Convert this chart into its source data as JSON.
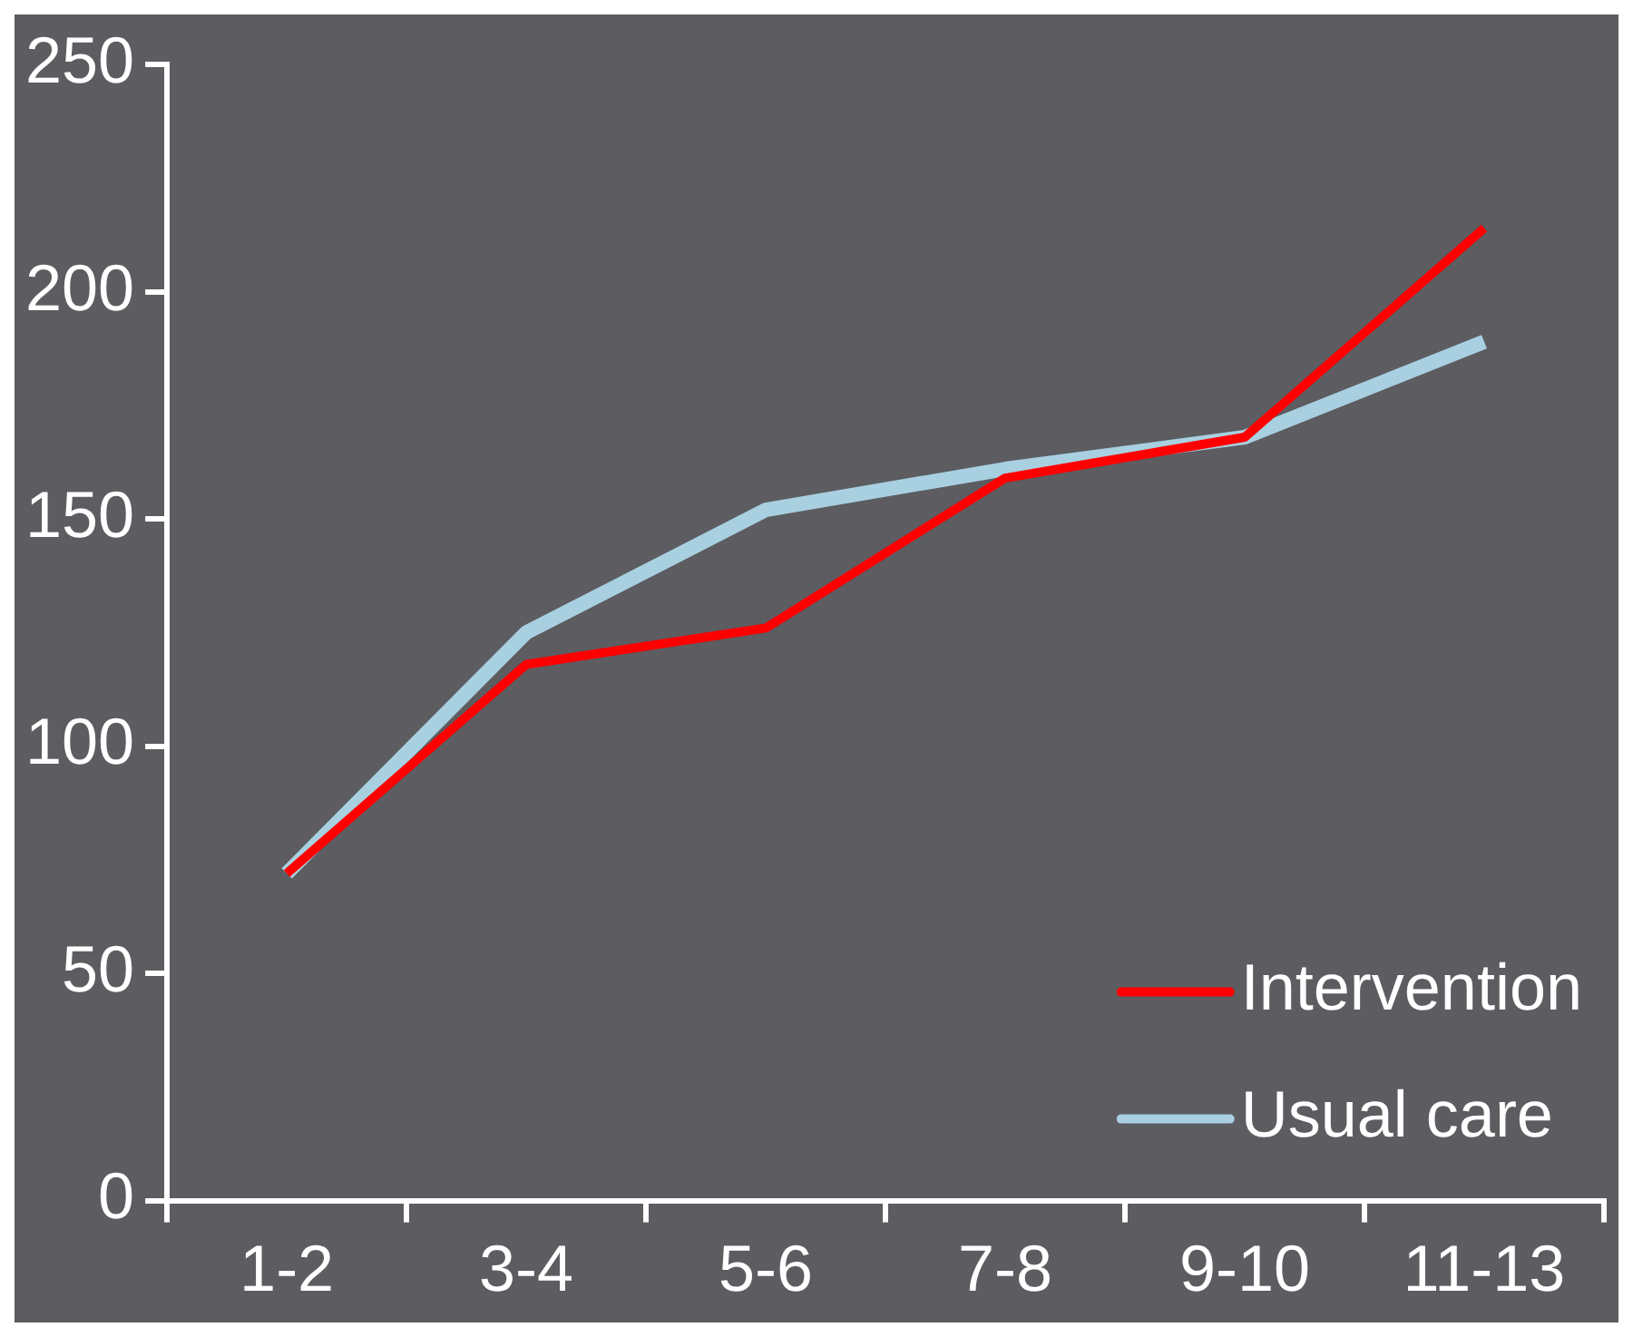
{
  "chart_data": {
    "type": "line",
    "categories": [
      "1-2",
      "3-4",
      "5-6",
      "7-8",
      "9-10",
      "11-13"
    ],
    "series": [
      {
        "name": "Intervention",
        "color": "#ff0000",
        "values": [
          72,
          118,
          126,
          159,
          168,
          214
        ]
      },
      {
        "name": "Usual care",
        "color": "#a8d0e0",
        "values": [
          72,
          125,
          152,
          161,
          168,
          189
        ]
      }
    ],
    "ylim": [
      0,
      250
    ],
    "yticks": [
      0,
      50,
      100,
      150,
      200,
      250
    ],
    "grid": false,
    "legend": "bottom right",
    "marker": "none",
    "line_style": "solid"
  }
}
